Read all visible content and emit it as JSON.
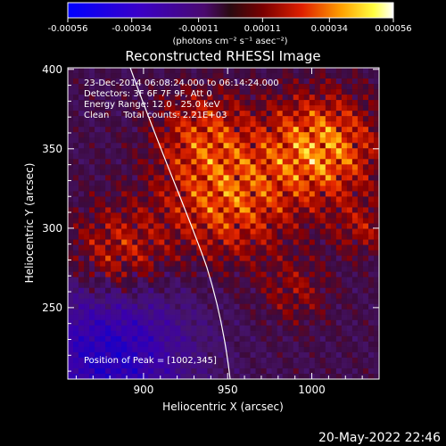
{
  "chart_data": {
    "type": "heatmap",
    "title": "Reconstructed RHESSI Image",
    "xlabel": "Heliocentric X (arcsec)",
    "ylabel": "Heliocentric Y (arcsec)",
    "xlim": [
      855,
      1040
    ],
    "ylim": [
      205,
      401
    ],
    "x_ticks": [
      "900",
      "950",
      "1000"
    ],
    "x_tick_values": [
      900,
      950,
      1000
    ],
    "y_ticks": [
      "250",
      "300",
      "350",
      "400"
    ],
    "y_tick_values": [
      250,
      300,
      350,
      400
    ],
    "colorbar": {
      "ticks": [
        "-0.00056",
        "-0.00034",
        "-0.00011",
        "0.00011",
        "0.00034",
        "0.00056"
      ],
      "tick_values": [
        -0.00056,
        -0.00034,
        -0.00011,
        0.00011,
        0.00034,
        0.00056
      ],
      "range": [
        -0.00056,
        0.00056
      ],
      "unit_label": "(photons cm⁻² s⁻¹ asec⁻²)",
      "colormap": "blue-purple-red-yellow-white"
    },
    "annotations": {
      "time_range": "23-Dec-2014 06:08:24.000 to 06:14:24.000",
      "detectors": "Detectors: 3F 6F 7F 9F, Att 0",
      "energy": "Energy Range: 12.0 - 25.0 keV",
      "clean": "Clean     Total counts: 2.21E+03",
      "peak": "Position of Peak = [1002,345]"
    },
    "peak_position": [
      1002,
      345
    ],
    "limb": true,
    "limb_color": "#ffffff"
  },
  "footer": {
    "timestamp": "20-May-2022 22:46"
  }
}
